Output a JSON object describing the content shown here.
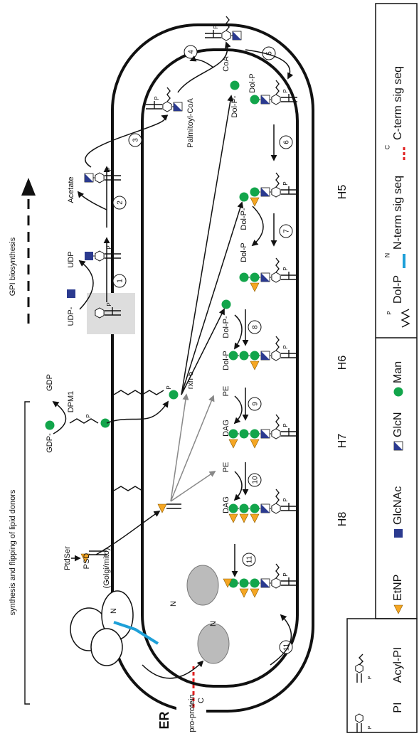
{
  "labels": {
    "compartment": "ER",
    "lipid_donors": "synthesis and flipping of lipid donors",
    "gpi_biosynthesis": "GPI biosynthesis",
    "phosphate": "P"
  },
  "protein": {
    "name": "pro-protein",
    "c_terminus": "C",
    "n_terminus_labels": [
      "N",
      "N",
      "N"
    ]
  },
  "donor_reactions": {
    "ptdser": "PtdSer",
    "psd": "PSD",
    "psd_location": "(Golgi/mito)",
    "dpm1": "DPM1",
    "gdp_man": "GDP-",
    "gdp": "GDP",
    "rxn6": "rxn 6"
  },
  "steps": [
    "1",
    "2",
    "3",
    "4",
    "5",
    "6",
    "7",
    "8",
    "9",
    "10",
    "11",
    "11"
  ],
  "reagents": [
    "UDP-",
    "UDP",
    "Acetate",
    "Palmitoyl-CoA",
    "CoA",
    "Dol-P-",
    "Dol-P",
    "Dol-P",
    "Dol-P-",
    "Dol-P",
    "Dol-P-",
    "DAG",
    "PE",
    "DAG",
    "PE"
  ],
  "intermediates": [
    "H5",
    "H6",
    "H7",
    "H8"
  ],
  "legend": {
    "pi": "PI",
    "acyl_pi": "Acyl-PI",
    "etnp": "EtNP",
    "glcnac": "GlcNAc",
    "glcn": "GlcN",
    "man": "Man",
    "dol_p": "Dol-P",
    "n_marker": "N",
    "n_term": "N-term sig seq",
    "c_marker": "C",
    "c_term": "C-term sig seq"
  }
}
